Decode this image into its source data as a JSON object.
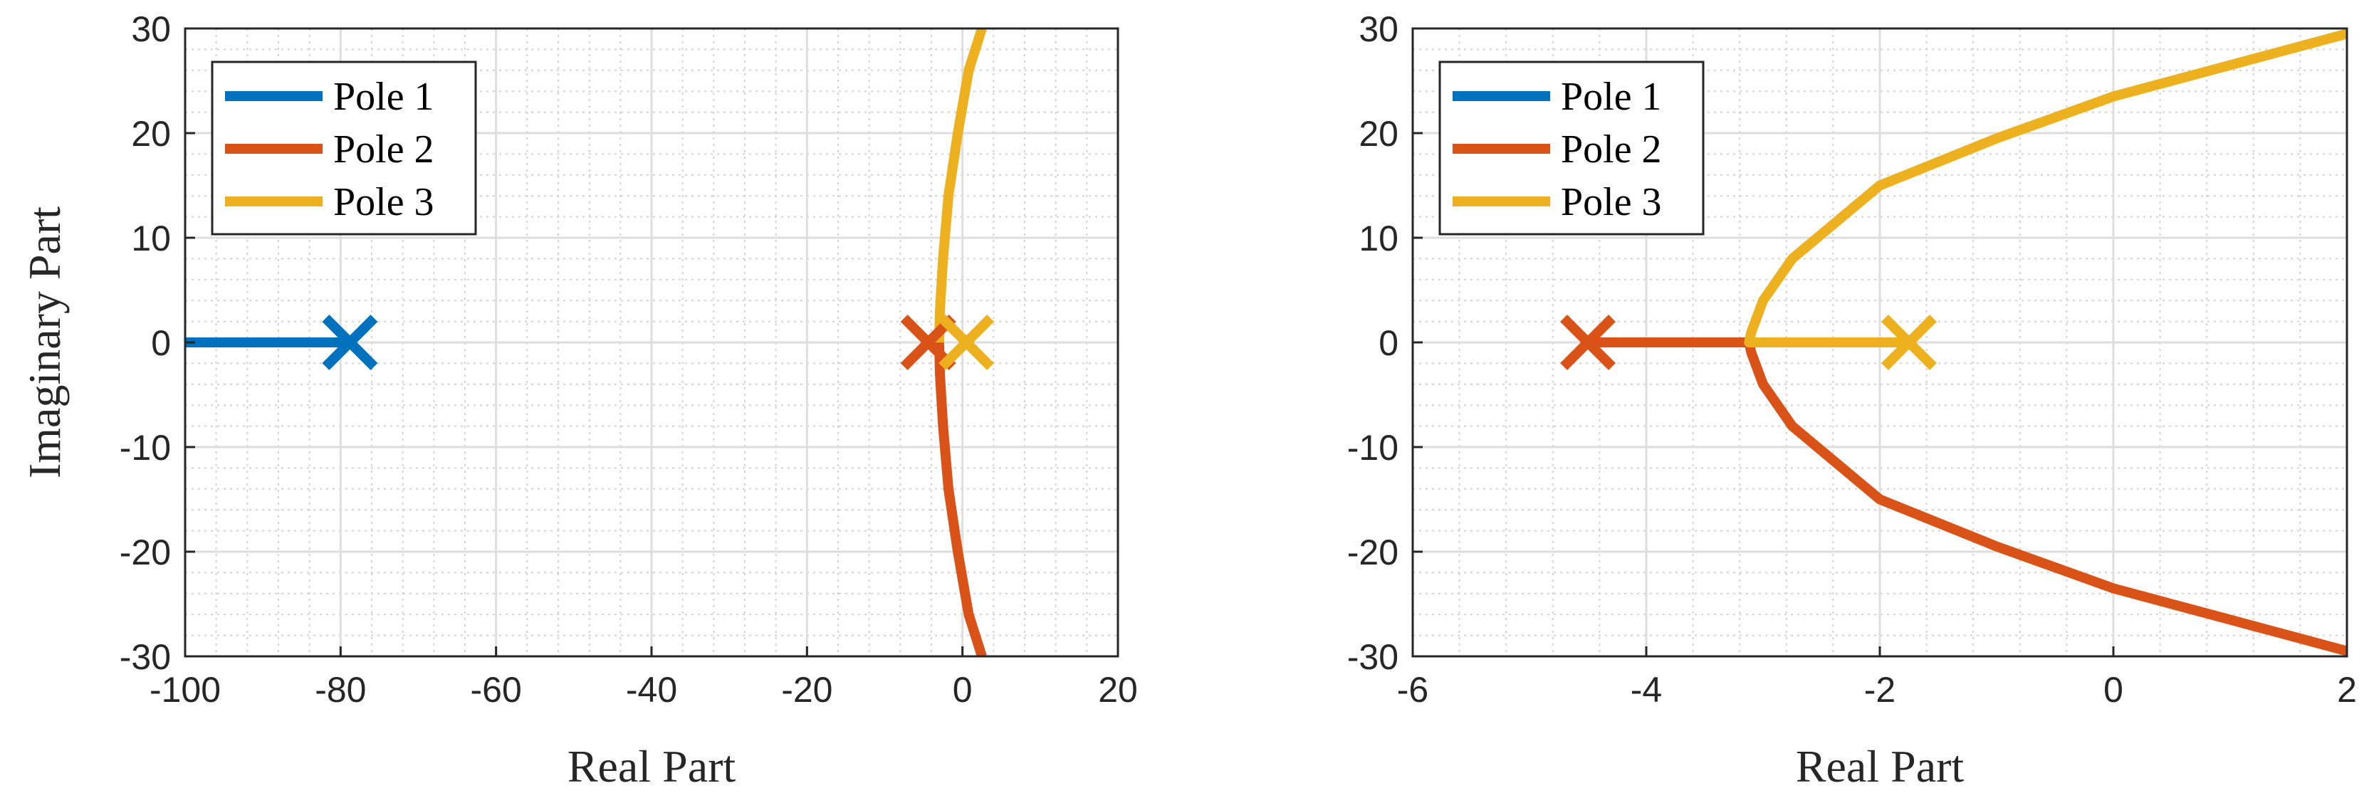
{
  "colors": {
    "pole1": "#0072BD",
    "pole2": "#D95319",
    "pole3": "#EDB120"
  },
  "chart_data": [
    {
      "type": "line",
      "title": "",
      "xlabel": "Real Part",
      "ylabel": "Imaginary Part",
      "xlim": [
        -100,
        20
      ],
      "ylim": [
        -30,
        30
      ],
      "xticks": [
        -100,
        -80,
        -60,
        -40,
        -20,
        0,
        20
      ],
      "yticks": [
        -30,
        -20,
        -10,
        0,
        10,
        20,
        30
      ],
      "grid": true,
      "minor_grid": true,
      "legend_position": "top-left",
      "series": [
        {
          "name": "Pole 1",
          "color": "#0072BD",
          "x": [
            -100,
            -78.8
          ],
          "y": [
            0,
            0
          ],
          "start": [
            -78.8,
            0
          ]
        },
        {
          "name": "Pole 2",
          "color": "#D95319",
          "x": [
            -3.0,
            -2.9,
            -2.5,
            -1.8,
            -0.6,
            0.8,
            2.5
          ],
          "y": [
            0,
            -3,
            -8,
            -14,
            -20,
            -26,
            -30
          ],
          "start": [
            -4.4,
            0
          ]
        },
        {
          "name": "Pole 3",
          "color": "#EDB120",
          "x": [
            -3.0,
            -2.9,
            -2.5,
            -1.8,
            -0.6,
            0.8,
            2.5
          ],
          "y": [
            0,
            3,
            8,
            14,
            20,
            26,
            30
          ],
          "start": [
            0.5,
            0
          ]
        }
      ]
    },
    {
      "type": "line",
      "title": "",
      "xlabel": "Real Part",
      "ylabel": "",
      "xlim": [
        -6,
        2
      ],
      "ylim": [
        -30,
        30
      ],
      "xticks": [
        -6,
        -4,
        -2,
        0,
        2
      ],
      "yticks": [
        -30,
        -20,
        -10,
        0,
        10,
        20,
        30
      ],
      "grid": true,
      "minor_grid": true,
      "legend_position": "top-left",
      "series": [
        {
          "name": "Pole 1",
          "color": "#0072BD",
          "x": [],
          "y": []
        },
        {
          "name": "Pole 2",
          "color": "#D95319",
          "x": [
            -4.5,
            -3.12,
            -3.1,
            -3.0,
            -2.75,
            -2.0,
            -1.0,
            0.0,
            1.0,
            2.0
          ],
          "y": [
            0,
            0,
            -1,
            -4,
            -8,
            -15,
            -19.5,
            -23.5,
            -26.5,
            -29.5
          ],
          "start": [
            -4.5,
            0
          ]
        },
        {
          "name": "Pole 3",
          "color": "#EDB120",
          "x": [
            -1.75,
            -3.12,
            -3.1,
            -3.0,
            -2.75,
            -2.0,
            -1.0,
            0.0,
            1.0,
            2.0
          ],
          "y": [
            0,
            0,
            1,
            4,
            8,
            15,
            19.5,
            23.5,
            26.5,
            29.5
          ],
          "start": [
            -1.75,
            0
          ]
        }
      ]
    }
  ]
}
